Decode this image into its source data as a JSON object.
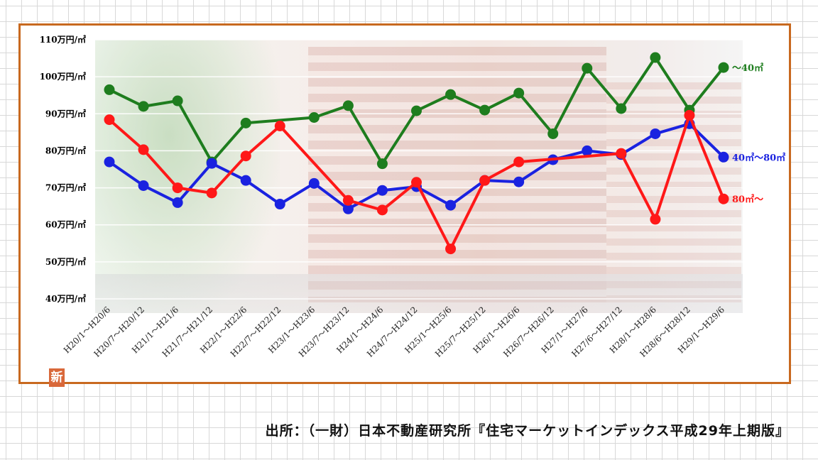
{
  "chart_data": {
    "type": "line",
    "y_tick_labels": [
      "40万円/㎡",
      "50万円/㎡",
      "60万円/㎡",
      "70万円/㎡",
      "80万円/㎡",
      "90万円/㎡",
      "100万円/㎡",
      "110万円/㎡"
    ],
    "y_ticks": [
      40,
      50,
      60,
      70,
      80,
      90,
      100,
      110
    ],
    "ylim": [
      40,
      110
    ],
    "categories": [
      "H20/1～H20/6",
      "H20/7～H20/12",
      "H21/1～H21/6",
      "H21/7～H21/12",
      "H22/1～H22/6",
      "H22/7～H22/12",
      "H23/1～H23/6",
      "H23/7～H23/12",
      "H24/1～H24/6",
      "H24/7～H24/12",
      "H25/1～H25/6",
      "H25/7～H25/12",
      "H26/1～H26/6",
      "H26/7～H26/12",
      "H27/1～H27/6",
      "H27/6～H27/12",
      "H28/1～H28/6",
      "H28/6～H28/12",
      "H29/1～H29/6"
    ],
    "series": [
      {
        "name": "～40㎡",
        "color": "#1e7d1e",
        "values": [
          96.5,
          92,
          93.5,
          77,
          87.5,
          null,
          89,
          92.2,
          76.5,
          90.8,
          95.2,
          91,
          95.6,
          84.6,
          102.3,
          91.4,
          105.2,
          91,
          102.5
        ]
      },
      {
        "name": "40㎡～80㎡",
        "color": "#1a22e0",
        "values": [
          77,
          70.6,
          66,
          76.6,
          72,
          65.6,
          71.2,
          64.3,
          69.3,
          70.3,
          65.3,
          72,
          71.6,
          77.6,
          80,
          79,
          84.6,
          87.3,
          78.3
        ]
      },
      {
        "name": "80㎡～",
        "color": "#ff1818",
        "values": [
          88.4,
          80.3,
          70,
          68.6,
          78.6,
          86.7,
          null,
          66.6,
          64,
          71.5,
          53.5,
          72,
          77,
          null,
          null,
          79.3,
          61.5,
          89.6,
          67
        ]
      }
    ],
    "grid": true,
    "legend": "inline-right"
  },
  "source": "出所：（一財）日本不動産研究所『住宅マーケットインデックス平成29年上期版』",
  "badge": "新"
}
